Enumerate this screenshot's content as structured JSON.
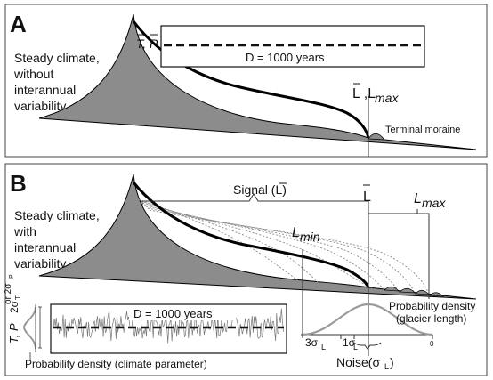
{
  "panel_a": {
    "letter": "A",
    "description_lines": [
      "Steady climate,",
      "without",
      "interannual",
      "variability"
    ],
    "inset_ylabel": "T, P",
    "inset_duration": "D = 1000 years",
    "terminal_label": "L ,L",
    "terminal_sub": "max",
    "moraine_label": "Terminal moraine"
  },
  "panel_b": {
    "letter": "B",
    "description_lines": [
      "Steady climate,",
      "with",
      "interannual",
      "variability"
    ],
    "signal_label": "Signal (L)",
    "lbar_label": "L",
    "lmax_label": "L",
    "lmax_sub": "max",
    "lmin_label": "L",
    "lmin_sub": "min",
    "inset_ylabel": "T, P",
    "inset_duration": "D = 1000 years",
    "sigma_label_main": "2σ",
    "sigma_label_sub": "T",
    "sigma_label_alt": "or 2σ",
    "sigma_label_alt_sub": "P",
    "climate_density_label": "Probability density (climate parameter)",
    "glacier_density_label_1": "Probability density",
    "glacier_density_label_2": "(glacier length)",
    "three_sigma": "3σ",
    "three_sigma_sub": "L",
    "one_sigma": "1σ",
    "one_sigma_sub": "L",
    "zero_tick": "0",
    "noise_label": "Noise(σ",
    "noise_sub": "L",
    "noise_close": ")"
  },
  "colors": {
    "glacier_fill": "#8c8c8c",
    "glacier_stroke": "#000000",
    "profile_line": "#000000",
    "dotted_profiles": "#8a8a8a",
    "series_grey": "#777777",
    "density_curve": "#9a9a9a",
    "frame": "#444444"
  }
}
